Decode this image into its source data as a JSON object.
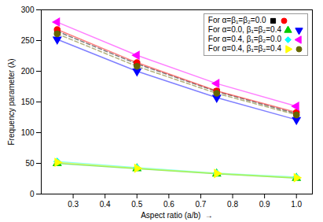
{
  "chart_data": {
    "type": "line",
    "x": [
      0.25,
      0.5,
      0.75,
      1.0
    ],
    "series": [
      {
        "color": "black",
        "marker": "square",
        "line_style": "dashed",
        "values": [
          265.0,
          212.0,
          167.0,
          131.0
        ]
      },
      {
        "color": "red",
        "marker": "circle",
        "line_style": "solid",
        "values": [
          268.0,
          214.0,
          168.0,
          133.0
        ]
      },
      {
        "color": "#00cc00",
        "marker": "triangle-up",
        "line_style": "solid",
        "values": [
          50.0,
          41.5,
          33.0,
          26.0
        ]
      },
      {
        "color": "blue",
        "marker": "triangle-down",
        "line_style": "solid",
        "values": [
          252.0,
          200.0,
          157.0,
          121.0
        ]
      },
      {
        "color": "cyan",
        "marker": "diamond",
        "line_style": "solid",
        "values": [
          53.0,
          43.0,
          34.0,
          27.5
        ]
      },
      {
        "color": "magenta",
        "marker": "triangle-left",
        "line_style": "solid",
        "values": [
          280.0,
          226.0,
          180.0,
          143.0
        ]
      },
      {
        "color": "yellow",
        "marker": "triangle-right",
        "line_style": "solid",
        "values": [
          51.5,
          42.0,
          33.5,
          26.5
        ]
      },
      {
        "color": "#666600",
        "marker": "circle",
        "line_style": "dashed",
        "values": [
          261.0,
          208.0,
          164.0,
          129.0
        ]
      }
    ],
    "legend": "upper right",
    "legend_groups": [
      {
        "title": "For α=β₁=β₂=0.0",
        "series": [
          0,
          1
        ]
      },
      {
        "title": "For α=0.0, β₁=β₂=0.4",
        "series": [
          2,
          3
        ]
      },
      {
        "title": "For α=0.4, β₁=β₂=0.0",
        "series": [
          4,
          5
        ]
      },
      {
        "title": "For α=0.4, β₁=β₂=0.4",
        "series": [
          6,
          7
        ]
      }
    ],
    "xlabel": "Aspect ratio (a/b)  →",
    "ylabel": "Frequency parameter (λ)",
    "xlim": [
      0.2,
      1.05
    ],
    "ylim": [
      0,
      300
    ],
    "xticks": [
      0.3,
      0.4,
      0.5,
      0.6,
      0.7,
      0.8,
      0.9,
      {
        "value": 1.0,
        "label": "1.0"
      }
    ],
    "yticks": [
      0,
      50,
      100,
      150,
      200,
      250,
      300
    ],
    "grid": false
  }
}
